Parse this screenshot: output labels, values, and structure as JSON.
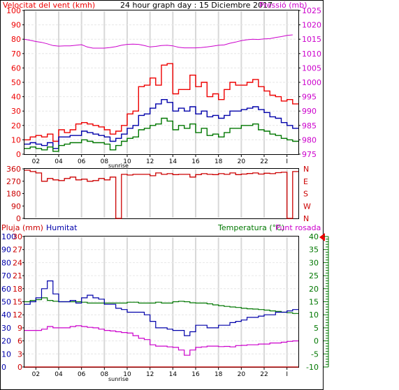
{
  "header": {
    "title": "24 hour graph day : 15 Diciembre 2017",
    "left_label": "Velocitat del vent (kmh)",
    "right_label": "Pressió (mb)"
  },
  "bottom_header": {
    "rain_label": "Pluja (mm)",
    "humidity_label": "Humitat",
    "temp_label": "Temperatura (°C)",
    "dew_label": "Punt rosada"
  },
  "colors": {
    "wind_gust": "#ee0000",
    "wind_avg": "#0000aa",
    "wind_low": "#007700",
    "pressure": "#cc00cc",
    "direction": "#cc0000",
    "temperature": "#007700",
    "humidity": "#0000aa",
    "dewpoint": "#cc00cc",
    "rain": "#cc0000"
  },
  "x_ticks": [
    "02",
    "04",
    "06",
    "08",
    "10",
    "12",
    "14",
    "16",
    "18",
    "20",
    "22",
    "I"
  ],
  "sunrise_label": "sunrise",
  "chart_data": [
    {
      "type": "line",
      "name": "wind-pressure",
      "x": [
        0,
        0.5,
        1,
        1.5,
        2,
        2.5,
        3,
        3.5,
        4,
        4.5,
        5,
        5.5,
        6,
        6.5,
        7,
        7.5,
        8,
        8.5,
        9,
        9.5,
        10,
        10.5,
        11,
        11.5,
        12,
        12.5,
        13,
        13.5,
        14,
        14.5,
        15,
        15.5,
        16,
        16.5,
        17,
        17.5,
        18,
        18.5,
        19,
        19.5,
        20,
        20.5,
        21,
        21.5,
        22,
        22.5,
        23,
        23.5
      ],
      "series": [
        {
          "name": "Velocitat del vent (kmh)",
          "axis": "left",
          "color": "#ee0000",
          "values": [
            10,
            12,
            13,
            12,
            14,
            9,
            17,
            15,
            17,
            21,
            22,
            21,
            20,
            19,
            17,
            14,
            16,
            20,
            28,
            30,
            47,
            48,
            53,
            48,
            62,
            63,
            42,
            45,
            45,
            55,
            47,
            50,
            40,
            42,
            38,
            45,
            50,
            48,
            48,
            50,
            52,
            47,
            44,
            41,
            40,
            37,
            38,
            35
          ]
        },
        {
          "name": "wind-avg",
          "axis": "left",
          "color": "#0000aa",
          "values": [
            7,
            8,
            7,
            6,
            8,
            4,
            12,
            12,
            13,
            13,
            16,
            15,
            14,
            13,
            12,
            9,
            11,
            14,
            18,
            20,
            27,
            28,
            32,
            35,
            38,
            36,
            30,
            32,
            30,
            33,
            28,
            30,
            26,
            27,
            25,
            27,
            30,
            30,
            31,
            32,
            33,
            31,
            29,
            26,
            25,
            22,
            20,
            18
          ]
        },
        {
          "name": "wind-low",
          "axis": "left",
          "color": "#007700",
          "values": [
            4,
            5,
            4,
            3,
            5,
            2,
            6,
            7,
            8,
            8,
            10,
            9,
            8,
            8,
            7,
            3,
            6,
            9,
            11,
            12,
            17,
            18,
            20,
            21,
            25,
            23,
            17,
            20,
            18,
            21,
            15,
            18,
            13,
            14,
            12,
            15,
            18,
            18,
            20,
            20,
            21,
            17,
            16,
            14,
            13,
            11,
            10,
            9
          ]
        },
        {
          "name": "Pressió (mb)",
          "axis": "right",
          "color": "#cc00cc",
          "values": [
            1015.0,
            1014.6,
            1014.2,
            1013.9,
            1013.4,
            1012.8,
            1012.6,
            1012.7,
            1012.7,
            1012.9,
            1013.1,
            1012.3,
            1011.9,
            1011.9,
            1011.9,
            1012.1,
            1012.4,
            1012.9,
            1013.2,
            1013.3,
            1013.2,
            1012.8,
            1012.3,
            1012.5,
            1012.8,
            1012.9,
            1012.7,
            1012.2,
            1012.0,
            1012.0,
            1012.0,
            1012.1,
            1012.3,
            1012.6,
            1012.9,
            1013.0,
            1013.6,
            1014.0,
            1014.5,
            1014.8,
            1015.0,
            1014.9,
            1015.1,
            1015.2,
            1015.6,
            1015.9,
            1016.3,
            1016.5
          ]
        }
      ],
      "left_axis": {
        "ylim": [
          0,
          100
        ],
        "ticks": [
          0,
          10,
          20,
          30,
          40,
          50,
          60,
          70,
          80,
          90,
          100
        ]
      },
      "right_axis": {
        "ylim": [
          975,
          1025
        ],
        "ticks": [
          975,
          980,
          985,
          990,
          995,
          1000,
          1005,
          1010,
          1015,
          1020,
          1025
        ]
      }
    },
    {
      "type": "line",
      "name": "wind-direction",
      "x": [
        0,
        0.5,
        1,
        1.5,
        2,
        2.5,
        3,
        3.5,
        4,
        4.5,
        5,
        5.5,
        6,
        6.5,
        7,
        7.5,
        8,
        8.5,
        9,
        9.5,
        10,
        10.5,
        11,
        11.5,
        12,
        12.5,
        13,
        13.5,
        14,
        14.5,
        15,
        15.5,
        16,
        16.5,
        17,
        17.5,
        18,
        18.5,
        19,
        19.5,
        20,
        20.5,
        21,
        21.5,
        22,
        22.5,
        23,
        23.5
      ],
      "series": [
        {
          "name": "direction",
          "color": "#cc0000",
          "values": [
            350,
            340,
            330,
            270,
            290,
            280,
            275,
            290,
            300,
            280,
            285,
            270,
            275,
            290,
            280,
            300,
            0,
            320,
            315,
            320,
            320,
            320,
            310,
            330,
            320,
            325,
            318,
            320,
            320,
            300,
            318,
            325,
            320,
            318,
            325,
            320,
            330,
            318,
            322,
            326,
            330,
            322,
            328,
            325,
            332,
            335,
            0,
            340
          ]
        }
      ],
      "ylim": [
        0,
        360
      ],
      "left_ticks": [
        0,
        90,
        180,
        270,
        360
      ],
      "left_tick_labels": [
        "0",
        "90",
        "180",
        "270",
        "360"
      ],
      "right_labels": [
        "N",
        "W",
        "S",
        "E",
        "N"
      ]
    },
    {
      "type": "line",
      "name": "temperature-humidity",
      "x": [
        0,
        0.5,
        1,
        1.5,
        2,
        2.5,
        3,
        3.5,
        4,
        4.5,
        5,
        5.5,
        6,
        6.5,
        7,
        7.5,
        8,
        8.5,
        9,
        9.5,
        10,
        10.5,
        11,
        11.5,
        12,
        12.5,
        13,
        13.5,
        14,
        14.5,
        15,
        15.5,
        16,
        16.5,
        17,
        17.5,
        18,
        18.5,
        19,
        19.5,
        20,
        20.5,
        21,
        21.5,
        22,
        22.5,
        23,
        23.5
      ],
      "series": [
        {
          "name": "Temperatura (°C)",
          "axis": "right",
          "color": "#007700",
          "values": [
            15,
            15.5,
            15.8,
            16.5,
            15.5,
            15.2,
            15,
            15,
            15,
            15,
            14.8,
            14.5,
            14.5,
            14.5,
            14.5,
            14.5,
            14.5,
            14.5,
            14.8,
            14.8,
            14.5,
            14.5,
            14.5,
            14.8,
            14.5,
            14.5,
            15,
            15.2,
            15,
            14.6,
            14.5,
            14.5,
            14.2,
            13.8,
            13.5,
            13.2,
            13,
            12.8,
            12.5,
            12.3,
            12.2,
            12,
            11.8,
            11.5,
            11.3,
            11,
            10.8,
            10.5
          ]
        },
        {
          "name": "Humitat",
          "axis": "left",
          "color": "#0000aa",
          "values": [
            48,
            50,
            53,
            60,
            66,
            56,
            50,
            50,
            51,
            49,
            53,
            55,
            53,
            52,
            48,
            48,
            45,
            44,
            42,
            42,
            42,
            40,
            35,
            30,
            30,
            29,
            28,
            28,
            24,
            27,
            32,
            32,
            30,
            30,
            32,
            32,
            34,
            35,
            36,
            38,
            38,
            39,
            40,
            40,
            42,
            42,
            43,
            44
          ]
        },
        {
          "name": "Punt rosada",
          "axis": "right",
          "color": "#cc00cc",
          "values": [
            4,
            4,
            4,
            4.5,
            5.5,
            5,
            5,
            5,
            5.5,
            5.8,
            5.5,
            5.2,
            5,
            4.5,
            4,
            3.8,
            3.5,
            3.2,
            3,
            2,
            1,
            0.5,
            -1.5,
            -2,
            -2,
            -2.3,
            -2.5,
            -3.5,
            -5.5,
            -3.5,
            -2.5,
            -2.3,
            -2,
            -2,
            -2.2,
            -2.1,
            -2.3,
            -1.8,
            -1.7,
            -1.5,
            -1.5,
            -1.2,
            -1.2,
            -0.8,
            -0.8,
            -0.5,
            -0.2,
            0
          ]
        },
        {
          "name": "Pluja (mm)",
          "axis": "rain",
          "color": "#cc0000",
          "values": [
            0,
            0,
            0,
            0,
            0,
            0,
            0,
            0,
            0,
            0,
            0,
            0,
            0,
            0,
            0,
            0,
            0,
            0,
            0,
            0,
            0,
            0,
            0,
            0,
            0,
            0,
            0,
            0,
            0,
            0,
            0,
            0,
            0,
            0,
            0,
            0,
            0,
            0,
            0,
            0,
            0,
            0,
            0,
            0,
            0,
            0,
            0,
            0
          ]
        }
      ],
      "humidity_axis": {
        "ylim": [
          0,
          100
        ],
        "ticks": [
          0,
          10,
          20,
          30,
          40,
          50,
          60,
          70,
          80,
          90,
          100
        ]
      },
      "rain_axis": {
        "ylim": [
          0,
          30
        ],
        "ticks": [
          0,
          3,
          6,
          9,
          12,
          15,
          18,
          21,
          24,
          27,
          30
        ]
      },
      "temp_axis": {
        "ylim": [
          -10,
          40
        ],
        "ticks": [
          -10,
          -5,
          0,
          5,
          10,
          15,
          20,
          25,
          30,
          35,
          40
        ],
        "current_value": 40
      }
    }
  ]
}
